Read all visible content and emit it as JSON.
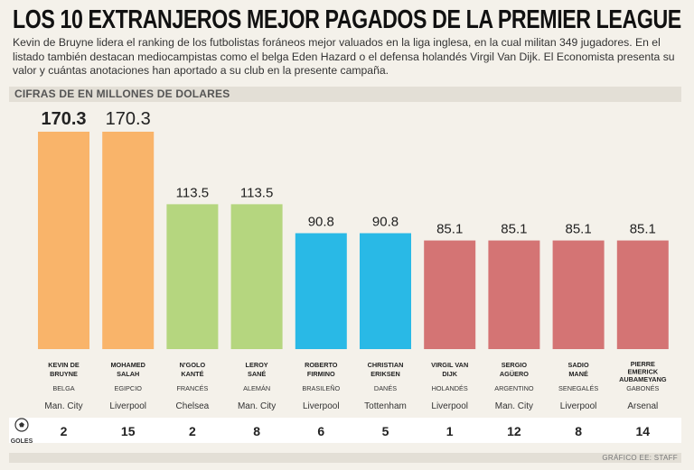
{
  "header": {
    "title": "LOS 10 EXTRANJEROS MEJOR PAGADOS DE LA PREMIER LEAGUE",
    "subtitle": "Kevin de Bruyne lidera el ranking de los futbolistas foráneos mejor valuados en la liga inglesa, en la cual militan 349 jugadores. En el listado también destacan mediocampistas como el belga Eden Hazard o el defensa holandés Virgil Van Dijk. El Economista presenta su valor y cuántas anotaciones han aportado a su club en la presente campaña.",
    "units_label": "CIFRAS DE EN MILLONES DE DOLARES"
  },
  "chart_data": {
    "type": "bar",
    "ylim": [
      0,
      170.3
    ],
    "bar_colors": [
      "#f9b46a",
      "#f9b46a",
      "#b5d67f",
      "#b5d67f",
      "#29b9e6",
      "#29b9e6",
      "#d47474",
      "#d47474",
      "#d47474",
      "#d47474"
    ],
    "categories": [
      {
        "name_lines": [
          "KEVIN DE",
          "BRUYNE"
        ],
        "nationality": "BELGA",
        "club": "Man. City",
        "goals": "2",
        "value": 170.3,
        "label": "170.3"
      },
      {
        "name_lines": [
          "MOHAMED",
          "SALAH"
        ],
        "nationality": "EGIPCIO",
        "club": "Liverpool",
        "goals": "15",
        "value": 170.3,
        "label": "170.3"
      },
      {
        "name_lines": [
          "N'GOLO",
          "KANTÉ"
        ],
        "nationality": "FRANCÉS",
        "club": "Chelsea",
        "goals": "2",
        "value": 113.5,
        "label": "113.5"
      },
      {
        "name_lines": [
          "LEROY",
          "SANÉ"
        ],
        "nationality": "ALEMÁN",
        "club": "Man. City",
        "goals": "8",
        "value": 113.5,
        "label": "113.5"
      },
      {
        "name_lines": [
          "ROBERTO",
          "FIRMINO"
        ],
        "nationality": "BRASILEÑO",
        "club": "Liverpool",
        "goals": "6",
        "value": 90.8,
        "label": "90.8"
      },
      {
        "name_lines": [
          "CHRISTIAN",
          "ERIKSEN"
        ],
        "nationality": "DANÉS",
        "club": "Tottenham",
        "goals": "5",
        "value": 90.8,
        "label": "90.8"
      },
      {
        "name_lines": [
          "VIRGIL VAN",
          "DIJK"
        ],
        "nationality": "HOLANDÉS",
        "club": "Liverpool",
        "goals": "1",
        "value": 85.1,
        "label": "85.1"
      },
      {
        "name_lines": [
          "SERGIO",
          "AGÜERO"
        ],
        "nationality": "ARGENTINO",
        "club": "Man. City",
        "goals": "12",
        "value": 85.1,
        "label": "85.1"
      },
      {
        "name_lines": [
          "SADIO",
          "MANÉ"
        ],
        "nationality": "SENEGALÉS",
        "club": "Liverpool",
        "goals": "8",
        "value": 85.1,
        "label": "85.1"
      },
      {
        "name_lines": [
          "PIERRE",
          "EMERICK",
          "AUBAMEYANG"
        ],
        "nationality": "GABONÉS",
        "club": "Arsenal",
        "goals": "14",
        "value": 85.1,
        "label": "85.1"
      }
    ],
    "goals_legend": "GOLES",
    "goals_icon": "soccer-ball-icon"
  },
  "footer": {
    "credit": "GRÁFICO EE: STAFF"
  }
}
